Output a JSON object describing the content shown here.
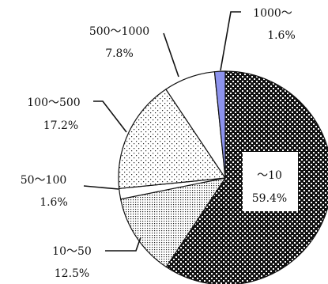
{
  "chart_data": {
    "type": "pie",
    "start": "12 o'clock, clockwise",
    "slices": [
      {
        "label": "～10",
        "value": 59.4,
        "pct_text": "59.4%",
        "fill": "black-checker"
      },
      {
        "label": "10～50",
        "value": 12.5,
        "pct_text": "12.5%",
        "fill": "fine-dots"
      },
      {
        "label": "50～100",
        "value": 1.6,
        "pct_text": "1.6%",
        "fill": "white"
      },
      {
        "label": "100～500",
        "value": 17.2,
        "pct_text": "17.2%",
        "fill": "sparse-dots"
      },
      {
        "label": "500～1000",
        "value": 7.8,
        "pct_text": "7.8%",
        "fill": "white"
      },
      {
        "label": "1000～",
        "value": 1.6,
        "pct_text": "1.6%",
        "fill": "#8d93ee"
      }
    ]
  }
}
